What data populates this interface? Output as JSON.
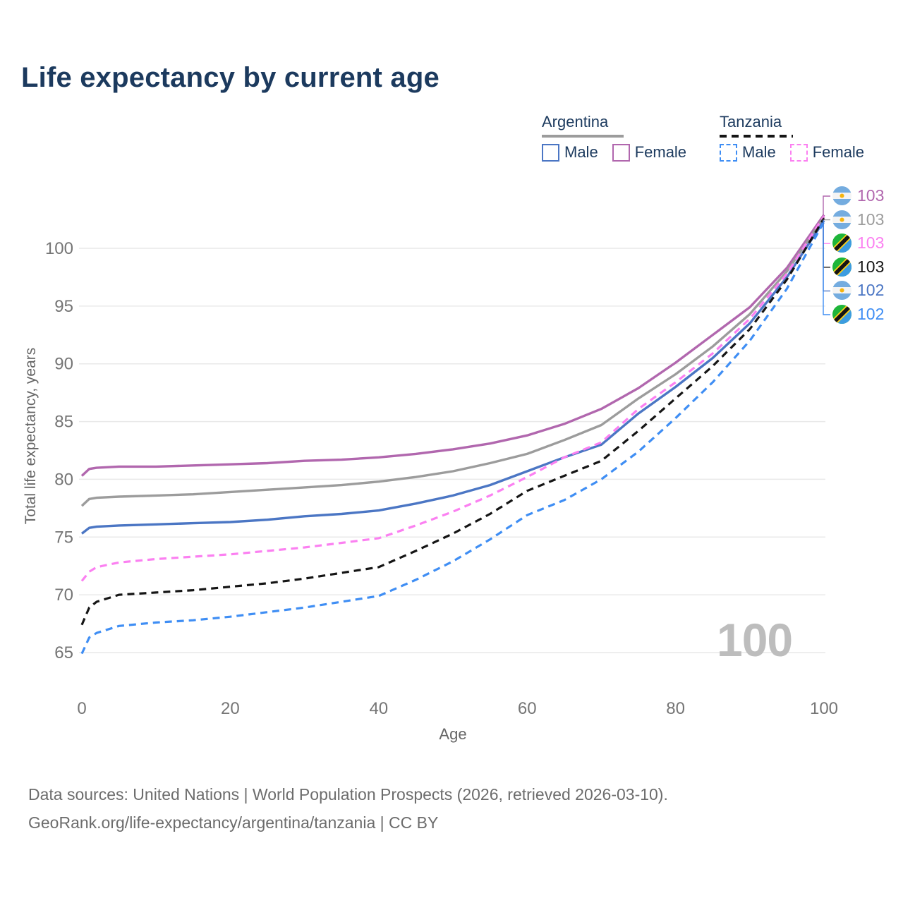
{
  "title": "Life expectancy by current age",
  "watermark": "100",
  "colors": {
    "title_navy": "#1c3a5e",
    "axis_text": "#757575",
    "axis_title": "#666666",
    "gridline": "#e9e9e9",
    "watermark": "#bdbdbd",
    "footer_text": "#6c6c6c",
    "argentina_male": "#4b76c4",
    "argentina_female": "#b167ae",
    "argentina_total": "#9c9c9c",
    "tanzania_male": "#3f8ef4",
    "tanzania_female": "#fb80f1",
    "tanzania_total": "#151515"
  },
  "legend": {
    "groups": [
      {
        "label": "Argentina",
        "underline_style": "solid",
        "underline_color": "#9c9c9c",
        "items": [
          {
            "label": "Male",
            "color": "#4b76c4",
            "dash": false
          },
          {
            "label": "Female",
            "color": "#b167ae",
            "dash": false
          }
        ]
      },
      {
        "label": "Tanzania",
        "underline_style": "dashed",
        "underline_color": "#151515",
        "items": [
          {
            "label": "Male",
            "color": "#3f8ef4",
            "dash": true
          },
          {
            "label": "Female",
            "color": "#fb80f1",
            "dash": true
          }
        ]
      }
    ]
  },
  "end_labels": [
    {
      "value": "103",
      "flag": "argentina",
      "series": "Argentina Female",
      "color": "#b167ae"
    },
    {
      "value": "103",
      "flag": "argentina",
      "series": "Argentina",
      "color": "#9c9c9c"
    },
    {
      "value": "103",
      "flag": "tanzania",
      "series": "Tanzania Female",
      "color": "#fb80f1"
    },
    {
      "value": "103",
      "flag": "tanzania",
      "series": "Tanzania",
      "color": "#151515"
    },
    {
      "value": "102",
      "flag": "argentina",
      "series": "Argentina Male",
      "color": "#4b76c4"
    },
    {
      "value": "102",
      "flag": "tanzania",
      "series": "Tanzania Male",
      "color": "#3f8ef4"
    }
  ],
  "chart_data": {
    "type": "line",
    "title": "Life expectancy by current age",
    "xlabel": "Age",
    "ylabel": "Total life expectancy, years",
    "xlim": [
      0,
      100
    ],
    "ylim": [
      61,
      106
    ],
    "x_ticks": [
      0,
      20,
      40,
      60,
      80,
      100
    ],
    "y_ticks": [
      65,
      70,
      75,
      80,
      85,
      90,
      95,
      100
    ],
    "grid": "horizontal",
    "legend_position": "top-right",
    "x": [
      0,
      1,
      2,
      5,
      10,
      15,
      20,
      25,
      30,
      35,
      40,
      45,
      50,
      55,
      60,
      65,
      70,
      75,
      80,
      85,
      90,
      95,
      100
    ],
    "series": [
      {
        "name": "Argentina Female",
        "country": "Argentina",
        "sex": "female",
        "style": "solid",
        "color": "#b167ae",
        "end_value": 103,
        "values": [
          80.3,
          80.9,
          81.0,
          81.1,
          81.1,
          81.2,
          81.3,
          81.4,
          81.6,
          81.7,
          81.9,
          82.2,
          82.6,
          83.1,
          83.8,
          84.8,
          86.1,
          87.9,
          90.1,
          92.5,
          94.9,
          98.3,
          102.9
        ]
      },
      {
        "name": "Argentina",
        "country": "Argentina",
        "sex": "both",
        "style": "solid",
        "color": "#9c9c9c",
        "end_value": 103,
        "values": [
          77.7,
          78.3,
          78.4,
          78.5,
          78.6,
          78.7,
          78.9,
          79.1,
          79.3,
          79.5,
          79.8,
          80.2,
          80.7,
          81.4,
          82.2,
          83.4,
          84.7,
          87.0,
          89.1,
          91.5,
          94.3,
          98.0,
          102.7
        ]
      },
      {
        "name": "Argentina Male",
        "country": "Argentina",
        "sex": "male",
        "style": "solid",
        "color": "#4b76c4",
        "end_value": 102,
        "values": [
          75.3,
          75.8,
          75.9,
          76.0,
          76.1,
          76.2,
          76.3,
          76.5,
          76.8,
          77.0,
          77.3,
          77.9,
          78.6,
          79.5,
          80.7,
          81.9,
          83.0,
          85.7,
          88.0,
          90.5,
          93.5,
          97.5,
          102.4
        ]
      },
      {
        "name": "Tanzania Female",
        "country": "Tanzania",
        "sex": "female",
        "style": "dashed",
        "color": "#fb80f1",
        "end_value": 103,
        "values": [
          71.2,
          72.0,
          72.4,
          72.8,
          73.1,
          73.3,
          73.5,
          73.8,
          74.1,
          74.5,
          74.9,
          76.0,
          77.2,
          78.6,
          80.2,
          81.9,
          83.2,
          86.1,
          88.4,
          90.9,
          93.9,
          97.8,
          102.8
        ]
      },
      {
        "name": "Tanzania",
        "country": "Tanzania",
        "sex": "both",
        "style": "dashed",
        "color": "#151515",
        "end_value": 103,
        "values": [
          67.4,
          68.9,
          69.4,
          70.0,
          70.2,
          70.4,
          70.7,
          71.0,
          71.4,
          71.9,
          72.4,
          73.8,
          75.3,
          77.0,
          79.0,
          80.3,
          81.6,
          84.2,
          87.0,
          89.8,
          93.0,
          97.3,
          102.6
        ]
      },
      {
        "name": "Tanzania Male",
        "country": "Tanzania",
        "sex": "male",
        "style": "dashed",
        "color": "#3f8ef4",
        "end_value": 102,
        "values": [
          64.9,
          66.3,
          66.7,
          67.3,
          67.6,
          67.8,
          68.1,
          68.5,
          68.9,
          69.4,
          69.9,
          71.3,
          72.9,
          74.8,
          76.9,
          78.2,
          80.0,
          82.4,
          85.3,
          88.4,
          92.0,
          96.5,
          102.3
        ]
      }
    ]
  },
  "footer": {
    "line1": "Data sources: United Nations | World Population Prospects (2026, retrieved 2026-03-10).",
    "line2": "GeoRank.org/life-expectancy/argentina/tanzania | CC BY"
  }
}
